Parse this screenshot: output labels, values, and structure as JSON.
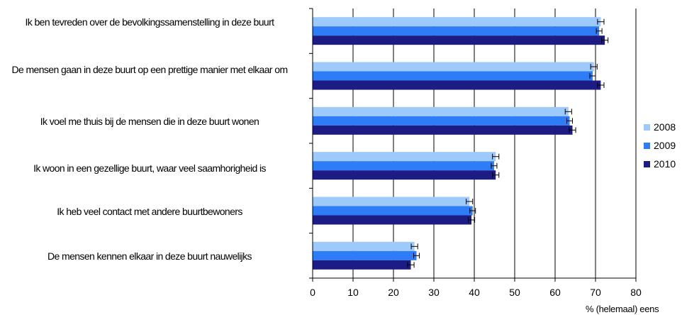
{
  "chart_data": {
    "type": "bar",
    "orientation": "horizontal",
    "categories": [
      "Ik ben tevreden over de  bevolkingssamenstelling in deze buurt",
      "De mensen gaan in deze buurt op een prettige manier met elkaar om",
      "Ik voel me thuis bij de mensen die in deze buurt wonen",
      "Ik woon in een gezellige buurt, waar veel saamhorigheid is",
      "Ik heb veel contact met andere buurtbewoners",
      "De mensen kennen elkaar in deze buurt nauwelijks"
    ],
    "series": [
      {
        "name": "2008",
        "color": "#9ec9fb",
        "values": [
          71.3,
          69.6,
          63.3,
          45.3,
          38.8,
          25.2
        ],
        "error": [
          0.8,
          0.8,
          0.8,
          0.8,
          0.8,
          0.8
        ]
      },
      {
        "name": "2009",
        "color": "#2e7cf6",
        "values": [
          70.9,
          69.3,
          63.6,
          44.9,
          39.6,
          25.7
        ],
        "error": [
          0.7,
          0.7,
          0.7,
          0.7,
          0.7,
          0.7
        ]
      },
      {
        "name": "2010",
        "color": "#1c1c84",
        "values": [
          72.3,
          71.3,
          64.3,
          45.3,
          39.3,
          24.3
        ],
        "error": [
          0.8,
          0.8,
          0.8,
          0.8,
          0.8,
          0.8
        ]
      }
    ],
    "xlim": [
      0,
      80
    ],
    "xticks": [
      "0",
      "10",
      "20",
      "30",
      "40",
      "50",
      "60",
      "70",
      "80"
    ],
    "xlabel": "% (helemaal) eens",
    "grid": "vertical",
    "legend": "right"
  }
}
